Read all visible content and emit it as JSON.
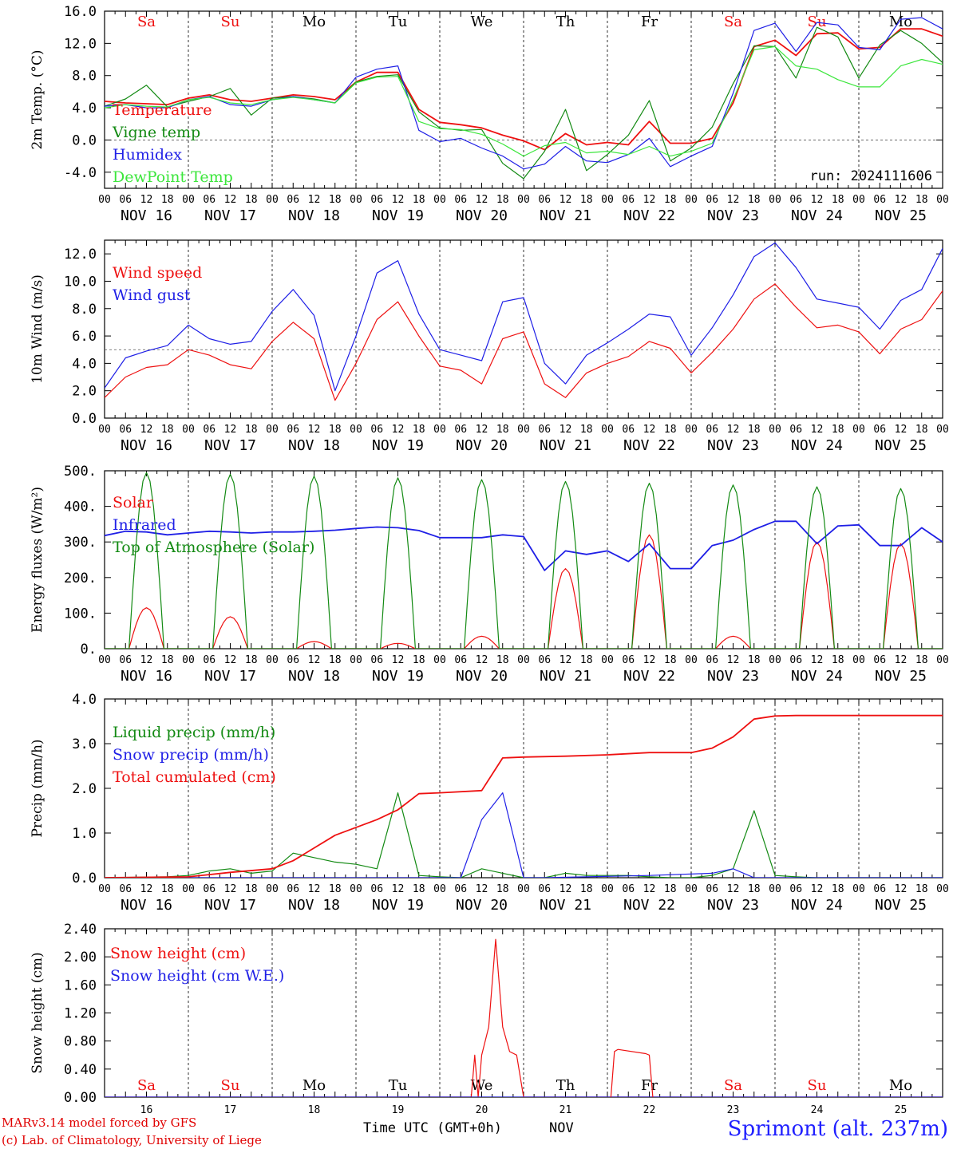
{
  "colors": {
    "red": "#ee1111",
    "dark_green": "#138a13",
    "blue": "#1f1fe6",
    "light_green": "#3ce63c",
    "black": "#000000"
  },
  "days": {
    "weekday_labels": [
      "Sa",
      "Su",
      "Mo",
      "Tu",
      "We",
      "Th",
      "Fr",
      "Sa",
      "Su",
      "Mo"
    ],
    "weekend_flags": [
      true,
      true,
      false,
      false,
      false,
      false,
      false,
      true,
      true,
      false
    ],
    "date_labels": [
      "NOV 16",
      "NOV 17",
      "NOV 18",
      "NOV 19",
      "NOV 20",
      "NOV 21",
      "NOV 22",
      "NOV 23",
      "NOV 24",
      "NOV 25"
    ],
    "day_numbers": [
      "16",
      "17",
      "18",
      "19",
      "20",
      "21",
      "22",
      "23",
      "24",
      "25"
    ],
    "hour_labels": [
      "00",
      "06",
      "12",
      "18"
    ],
    "final_hour_label": "00"
  },
  "chart_data": [
    {
      "type": "line",
      "ylabel": "2m Temp. (°C)",
      "ylim": [
        -6,
        16
      ],
      "yticks": [
        "16.0",
        "12.0",
        "8.0",
        "4.0",
        "0.0",
        "-4.0"
      ],
      "ytick_values": [
        16,
        12,
        8,
        4,
        0,
        -4
      ],
      "reference_line": 0,
      "annotation": "run: 2024111606",
      "x_unit": "hours since NOV 16 00 UTC",
      "series": [
        {
          "name": "Temperature",
          "color": "red",
          "x": [
            0,
            6,
            12,
            18,
            24,
            30,
            36,
            42,
            48,
            54,
            60,
            66,
            72,
            78,
            84,
            90,
            96,
            102,
            108,
            114,
            120,
            126,
            132,
            138,
            144,
            150,
            156,
            162,
            168,
            174,
            180,
            186,
            192,
            198,
            204,
            210,
            216,
            222,
            228,
            234,
            240
          ],
          "y": [
            4.8,
            4.6,
            4.5,
            4.4,
            5.2,
            5.6,
            5.0,
            4.8,
            5.2,
            5.6,
            5.4,
            5.0,
            7.2,
            8.4,
            8.4,
            3.8,
            2.2,
            1.9,
            1.5,
            0.6,
            -0.1,
            -1.2,
            0.8,
            -0.6,
            -0.3,
            -0.6,
            2.3,
            -0.4,
            -0.4,
            0.2,
            4.6,
            11.6,
            12.4,
            10.5,
            13.2,
            13.3,
            11.3,
            11.5,
            13.8,
            13.8,
            12.9
          ]
        },
        {
          "name": "Vigne temp",
          "color": "dark_green",
          "x": [
            0,
            6,
            12,
            18,
            24,
            30,
            36,
            42,
            48,
            54,
            60,
            66,
            72,
            78,
            84,
            90,
            96,
            102,
            108,
            114,
            120,
            126,
            132,
            138,
            144,
            150,
            156,
            162,
            168,
            174,
            180,
            186,
            192,
            198,
            204,
            210,
            216,
            222,
            228,
            234,
            240
          ],
          "y": [
            4.2,
            5.1,
            6.8,
            4.1,
            4.8,
            5.4,
            6.4,
            3.1,
            5.2,
            5.4,
            5.1,
            4.6,
            7.2,
            7.9,
            8.1,
            3.5,
            1.5,
            1.2,
            1.3,
            -2.9,
            -4.8,
            -1.4,
            3.8,
            -3.8,
            -1.8,
            0.6,
            4.9,
            -2.6,
            -1.0,
            1.6,
            7.0,
            11.7,
            11.6,
            7.7,
            14.0,
            12.8,
            7.7,
            11.8,
            13.6,
            12.0,
            9.6
          ]
        },
        {
          "name": "Humidex",
          "color": "blue",
          "x": [
            0,
            6,
            12,
            18,
            24,
            30,
            36,
            42,
            48,
            54,
            60,
            66,
            72,
            78,
            84,
            90,
            96,
            102,
            108,
            114,
            120,
            126,
            132,
            138,
            144,
            150,
            156,
            162,
            168,
            174,
            180,
            186,
            192,
            198,
            204,
            210,
            216,
            222,
            228,
            234,
            240
          ],
          "y": [
            4.2,
            4.4,
            4.0,
            4.0,
            5.0,
            5.4,
            4.4,
            4.2,
            5.0,
            5.4,
            5.0,
            4.6,
            7.8,
            8.8,
            9.2,
            1.2,
            -0.2,
            0.2,
            -1.0,
            -2.0,
            -3.6,
            -3.0,
            -0.8,
            -2.6,
            -2.8,
            -1.8,
            0.2,
            -3.3,
            -2.0,
            -0.8,
            5.8,
            13.6,
            14.5,
            11.0,
            14.6,
            14.3,
            11.5,
            11.2,
            15.0,
            15.2,
            13.8
          ]
        },
        {
          "name": "DewPoint Temp",
          "color": "light_green",
          "x": [
            0,
            6,
            12,
            18,
            24,
            30,
            36,
            42,
            48,
            54,
            60,
            66,
            72,
            78,
            84,
            90,
            96,
            102,
            108,
            114,
            120,
            126,
            132,
            138,
            144,
            150,
            156,
            162,
            168,
            174,
            180,
            186,
            192,
            198,
            204,
            210,
            216,
            222,
            228,
            234,
            240
          ],
          "y": [
            4.0,
            4.4,
            4.2,
            4.1,
            5.0,
            5.3,
            4.6,
            4.4,
            5.0,
            5.3,
            5.0,
            4.6,
            7.1,
            7.8,
            7.9,
            2.3,
            1.4,
            1.3,
            0.7,
            -0.5,
            -2.0,
            -0.7,
            -0.3,
            -1.6,
            -1.4,
            -1.8,
            -0.8,
            -2.0,
            -1.4,
            -0.4,
            5.0,
            11.2,
            11.6,
            9.2,
            8.8,
            7.5,
            6.6,
            6.6,
            9.2,
            10.0,
            9.4
          ]
        }
      ]
    },
    {
      "type": "line",
      "ylabel": "10m Wind (m/s)",
      "ylim": [
        0,
        13
      ],
      "yticks": [
        "12.0",
        "10.0",
        "8.0",
        "6.0",
        "4.0",
        "2.0",
        "0.0"
      ],
      "ytick_values": [
        12,
        10,
        8,
        6,
        4,
        2,
        0
      ],
      "reference_line": 5,
      "x_unit": "hours since NOV 16 00 UTC",
      "series": [
        {
          "name": "Wind speed",
          "color": "red",
          "x": [
            0,
            6,
            12,
            18,
            24,
            30,
            36,
            42,
            48,
            54,
            60,
            66,
            72,
            78,
            84,
            90,
            96,
            102,
            108,
            114,
            120,
            126,
            132,
            138,
            144,
            150,
            156,
            162,
            168,
            174,
            180,
            186,
            192,
            198,
            204,
            210,
            216,
            222,
            228,
            234,
            240
          ],
          "y": [
            1.5,
            3.0,
            3.7,
            3.9,
            5.0,
            4.6,
            3.9,
            3.6,
            5.6,
            7.0,
            5.8,
            1.3,
            4.0,
            7.2,
            8.5,
            6.0,
            3.8,
            3.5,
            2.5,
            5.8,
            6.3,
            2.5,
            1.5,
            3.3,
            4.0,
            4.5,
            5.6,
            5.1,
            3.3,
            4.8,
            6.5,
            8.7,
            9.8,
            8.1,
            6.6,
            6.8,
            6.3,
            4.7,
            6.5,
            7.2,
            9.3
          ]
        },
        {
          "name": "Wind gust",
          "color": "blue",
          "x": [
            0,
            6,
            12,
            18,
            24,
            30,
            36,
            42,
            48,
            54,
            60,
            66,
            72,
            78,
            84,
            90,
            96,
            102,
            108,
            114,
            120,
            126,
            132,
            138,
            144,
            150,
            156,
            162,
            168,
            174,
            180,
            186,
            192,
            198,
            204,
            210,
            216,
            222,
            228,
            234,
            240
          ],
          "y": [
            2.2,
            4.4,
            4.9,
            5.3,
            6.8,
            5.8,
            5.4,
            5.6,
            7.8,
            9.4,
            7.5,
            2.0,
            6.0,
            10.6,
            11.5,
            7.6,
            5.0,
            4.6,
            4.2,
            8.5,
            8.8,
            4.0,
            2.5,
            4.6,
            5.5,
            6.5,
            7.6,
            7.4,
            4.6,
            6.6,
            9.0,
            11.8,
            12.8,
            11.0,
            8.7,
            8.4,
            8.1,
            6.5,
            8.6,
            9.4,
            12.4
          ]
        }
      ]
    },
    {
      "type": "line",
      "ylabel": "Energy fluxes (W/m²)",
      "ylim": [
        0,
        500
      ],
      "yticks": [
        "500.",
        "400.",
        "300.",
        "200.",
        "100.",
        "0."
      ],
      "ytick_values": [
        500,
        400,
        300,
        200,
        100,
        0
      ],
      "x_unit": "hours since NOV 16 00 UTC",
      "series": [
        {
          "name": "Solar",
          "color": "red",
          "daily_peak": [
            115,
            90,
            20,
            15,
            35,
            225,
            320,
            35,
            300,
            295
          ]
        },
        {
          "name": "Infrared",
          "color": "blue",
          "x": [
            0,
            6,
            12,
            18,
            24,
            30,
            36,
            42,
            48,
            54,
            60,
            66,
            72,
            78,
            84,
            90,
            96,
            102,
            108,
            114,
            120,
            126,
            132,
            138,
            144,
            150,
            156,
            162,
            168,
            174,
            180,
            186,
            192,
            198,
            204,
            210,
            216,
            222,
            228,
            234,
            240
          ],
          "y": [
            318,
            330,
            328,
            320,
            325,
            330,
            328,
            325,
            328,
            328,
            330,
            333,
            338,
            342,
            340,
            332,
            312,
            312,
            312,
            320,
            315,
            220,
            275,
            265,
            275,
            245,
            295,
            225,
            225,
            290,
            305,
            335,
            358,
            358,
            295,
            345,
            348,
            290,
            290,
            340,
            300
          ]
        },
        {
          "name": "Top of Atmosphere (Solar)",
          "color": "dark_green",
          "daily_peak": [
            495,
            490,
            485,
            480,
            475,
            470,
            465,
            460,
            455,
            450
          ]
        }
      ]
    },
    {
      "type": "line",
      "ylabel": "Precip (mm/h)",
      "ylim": [
        0,
        4
      ],
      "yticks": [
        "4.0",
        "3.0",
        "2.0",
        "1.0",
        "0.0"
      ],
      "ytick_values": [
        4,
        3,
        2,
        1,
        0
      ],
      "x_unit": "hours since NOV 16 00 UTC",
      "series": [
        {
          "name": "Liquid precip (mm/h)",
          "color": "dark_green",
          "x": [
            0,
            18,
            24,
            30,
            36,
            42,
            48,
            54,
            60,
            66,
            72,
            78,
            84,
            90,
            96,
            102,
            108,
            114,
            120,
            126,
            132,
            138,
            144,
            150,
            156,
            162,
            168,
            174,
            180,
            186,
            192,
            198,
            204,
            240
          ],
          "y": [
            0,
            0.02,
            0.05,
            0.15,
            0.2,
            0.1,
            0.15,
            0.55,
            0.45,
            0.35,
            0.3,
            0.2,
            1.9,
            0.05,
            0.02,
            0,
            0.2,
            0.1,
            0,
            0,
            0.1,
            0.05,
            0.05,
            0.05,
            0.02,
            0,
            0,
            0.05,
            0.2,
            1.5,
            0.05,
            0.02,
            0,
            0
          ]
        },
        {
          "name": "Snow precip (mm/h)",
          "color": "blue",
          "x": [
            0,
            102,
            108,
            114,
            120,
            126,
            156,
            174,
            180,
            186,
            240
          ],
          "y": [
            0,
            0,
            1.3,
            1.9,
            0,
            0,
            0.05,
            0.1,
            0.2,
            0,
            0
          ]
        },
        {
          "name": "Total cumulated (cm)",
          "color": "red",
          "x": [
            0,
            24,
            36,
            48,
            54,
            66,
            78,
            84,
            90,
            96,
            108,
            114,
            120,
            132,
            144,
            156,
            168,
            174,
            180,
            186,
            192,
            198,
            240
          ],
          "y": [
            0,
            0.02,
            0.12,
            0.2,
            0.38,
            0.95,
            1.3,
            1.52,
            1.88,
            1.9,
            1.95,
            2.68,
            2.7,
            2.72,
            2.75,
            2.8,
            2.8,
            2.9,
            3.15,
            3.55,
            3.62,
            3.63,
            3.63
          ]
        }
      ]
    },
    {
      "type": "line",
      "ylabel": "Snow height (cm)",
      "ylim": [
        0,
        2.4
      ],
      "yticks": [
        "2.40",
        "2.00",
        "1.60",
        "1.20",
        "0.80",
        "0.40",
        "0.00"
      ],
      "ytick_values": [
        2.4,
        2.0,
        1.6,
        1.2,
        0.8,
        0.4,
        0.0
      ],
      "xlabel": "Time UTC (GMT+0h)",
      "x_unit_label": "NOV",
      "x_unit": "hours since NOV 16 00 UTC",
      "series": [
        {
          "name": "Snow height (cm)",
          "color": "red",
          "x": [
            0,
            105,
            106,
            107,
            108,
            110,
            112,
            114,
            116,
            118,
            120,
            126,
            240
          ],
          "y": [
            0,
            0,
            0.6,
            0,
            0.6,
            1.0,
            2.25,
            1.0,
            0.65,
            0.6,
            0,
            0,
            0
          ]
        },
        {
          "name": "Snow height (cm W.E.)",
          "color": "blue",
          "x": [
            0,
            240
          ],
          "y": [
            0,
            0
          ]
        },
        {
          "name": "Snow height (cm)",
          "color": "red",
          "x": [
            145,
            146,
            147,
            155,
            156,
            157
          ],
          "y": [
            0,
            0.65,
            0.68,
            0.62,
            0.6,
            0
          ]
        }
      ]
    }
  ],
  "footer": {
    "model_line": "MARv3.14 model forced by GFS",
    "credit_line": "(c) Lab. of Climatology, University of Liege",
    "station": "Sprimont (alt. 237m)"
  }
}
